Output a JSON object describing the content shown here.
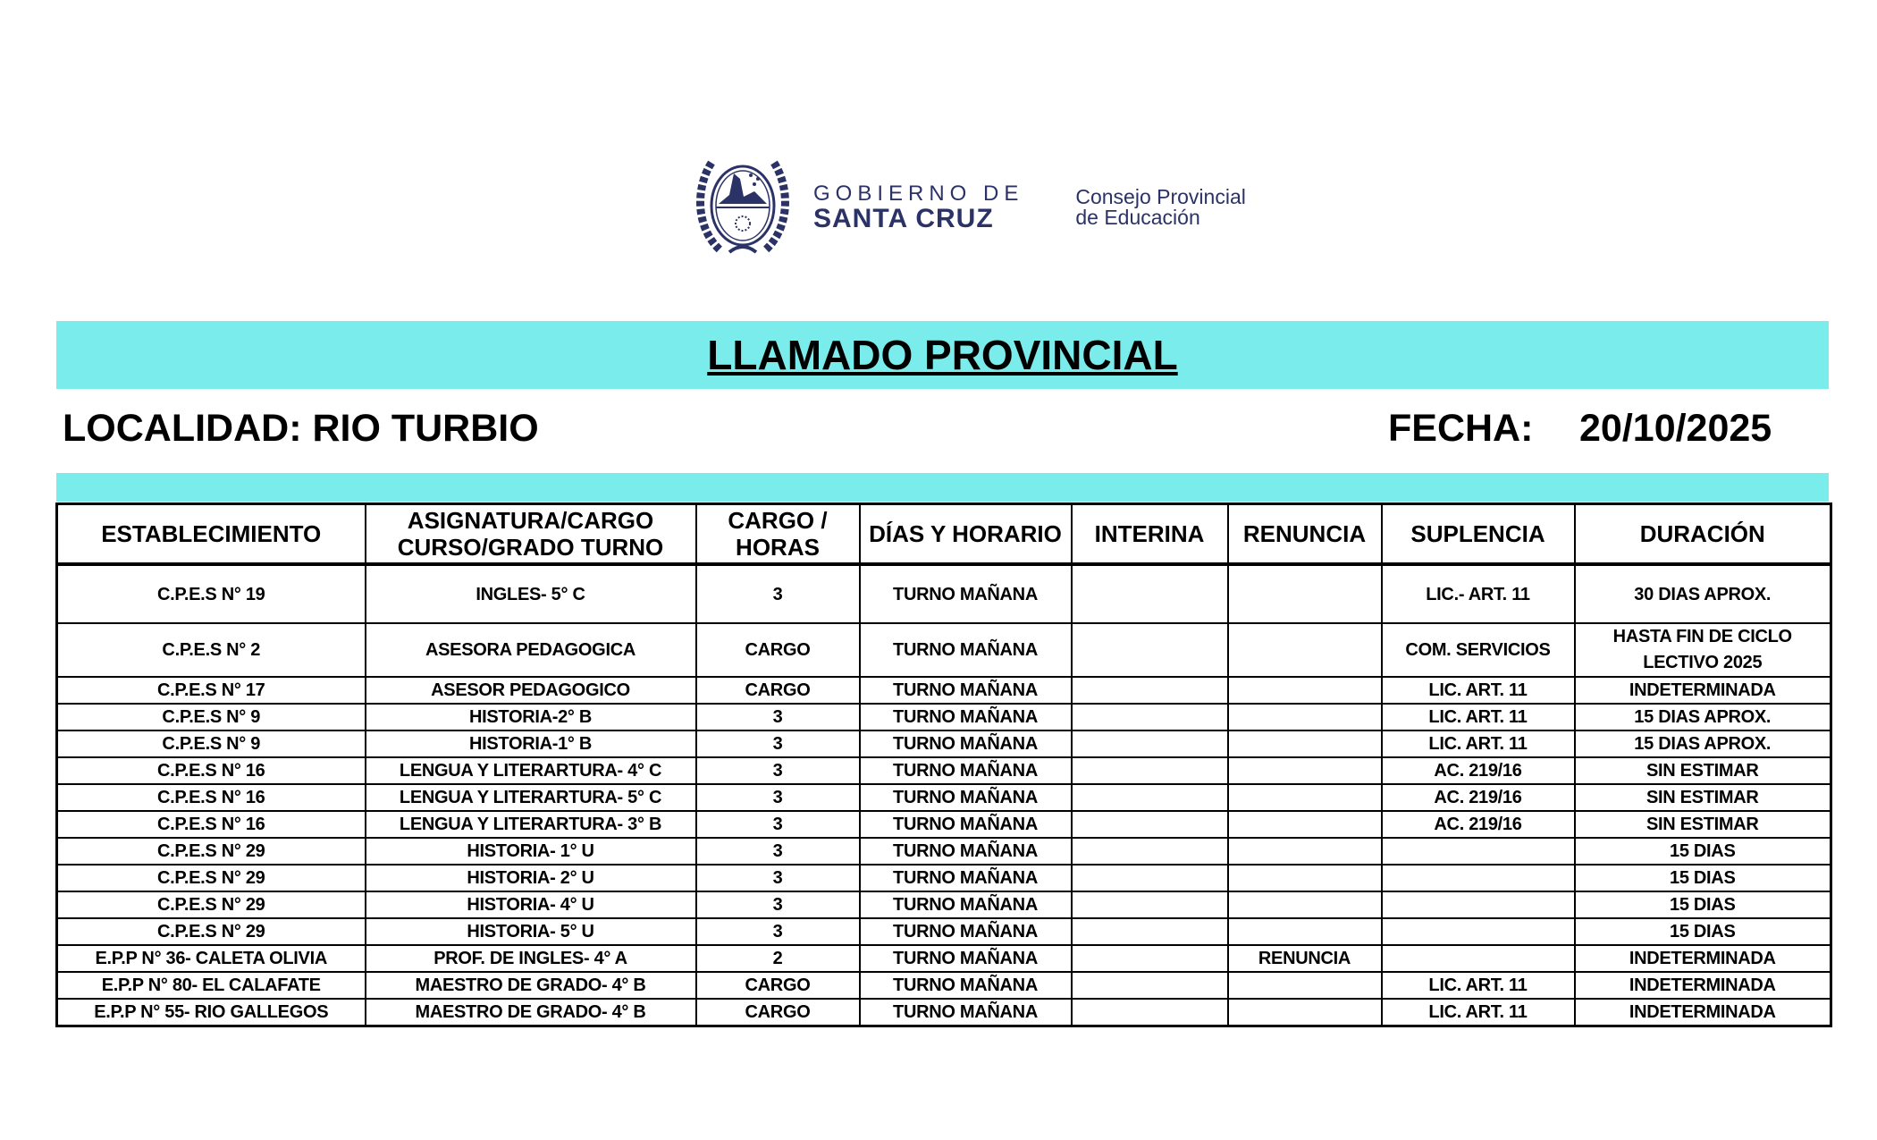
{
  "logo": {
    "line1": "GOBIERNO DE",
    "line2": "SANTA CRUZ",
    "council_line1": "Consejo Provincial",
    "council_line2": "de Educación",
    "brand_color": "#2b3266"
  },
  "title": "LLAMADO PROVINCIAL",
  "localidad": "LOCALIDAD: RIO TURBIO",
  "fecha_label": "FECHA:",
  "fecha_value": "20/10/2025",
  "accent_color": "#7aecec",
  "table": {
    "headers": [
      "ESTABLECIMIENTO",
      "ASIGNATURA/CARGO CURSO/GRADO  TURNO",
      "CARGO / HORAS",
      "DÍAS Y HORARIO",
      "INTERINA",
      "RENUNCIA",
      "SUPLENCIA",
      "DURACIÓN"
    ],
    "rows": [
      [
        "C.P.E.S N° 19",
        "INGLES- 5° C",
        "3",
        "TURNO MAÑANA",
        "",
        "",
        "LIC.- ART. 11",
        "30 DIAS APROX."
      ],
      [
        "C.P.E.S N° 2",
        "ASESORA PEDAGOGICA",
        "CARGO",
        "TURNO MAÑANA",
        "",
        "",
        "COM. SERVICIOS",
        "HASTA FIN DE CICLO LECTIVO 2025"
      ],
      [
        "C.P.E.S N° 17",
        "ASESOR PEDAGOGICO",
        "CARGO",
        "TURNO MAÑANA",
        "",
        "",
        "LIC. ART. 11",
        "INDETERMINADA"
      ],
      [
        "C.P.E.S N° 9",
        "HISTORIA-2° B",
        "3",
        "TURNO MAÑANA",
        "",
        "",
        "LIC. ART. 11",
        "15 DIAS APROX."
      ],
      [
        "C.P.E.S N° 9",
        "HISTORIA-1° B",
        "3",
        "TURNO MAÑANA",
        "",
        "",
        "LIC. ART. 11",
        "15 DIAS APROX."
      ],
      [
        "C.P.E.S N° 16",
        "LENGUA Y LITERARTURA- 4° C",
        "3",
        "TURNO MAÑANA",
        "",
        "",
        "AC. 219/16",
        "SIN ESTIMAR"
      ],
      [
        "C.P.E.S N° 16",
        "LENGUA Y LITERARTURA- 5° C",
        "3",
        "TURNO MAÑANA",
        "",
        "",
        "AC. 219/16",
        "SIN ESTIMAR"
      ],
      [
        "C.P.E.S N° 16",
        "LENGUA Y LITERARTURA- 3° B",
        "3",
        "TURNO MAÑANA",
        "",
        "",
        "AC. 219/16",
        "SIN ESTIMAR"
      ],
      [
        "C.P.E.S N° 29",
        "HISTORIA- 1° U",
        "3",
        "TURNO MAÑANA",
        "",
        "",
        "",
        "15 DIAS"
      ],
      [
        "C.P.E.S N° 29",
        "HISTORIA- 2° U",
        "3",
        "TURNO MAÑANA",
        "",
        "",
        "",
        "15 DIAS"
      ],
      [
        "C.P.E.S N° 29",
        "HISTORIA- 4° U",
        "3",
        "TURNO MAÑANA",
        "",
        "",
        "",
        "15 DIAS"
      ],
      [
        "C.P.E.S N° 29",
        "HISTORIA- 5° U",
        "3",
        "TURNO MAÑANA",
        "",
        "",
        "",
        "15 DIAS"
      ],
      [
        "E.P.P N° 36- CALETA OLIVIA",
        "PROF. DE INGLES- 4° A",
        "2",
        "TURNO MAÑANA",
        "",
        "RENUNCIA",
        "",
        "INDETERMINADA"
      ],
      [
        "E.P.P N° 80- EL CALAFATE",
        "MAESTRO DE GRADO- 4° B",
        "CARGO",
        "TURNO MAÑANA",
        "",
        "",
        "LIC. ART. 11",
        "INDETERMINADA"
      ],
      [
        "E.P.P N° 55- RIO GALLEGOS",
        "MAESTRO DE GRADO- 4° B",
        "CARGO",
        "TURNO MAÑANA",
        "",
        "",
        "LIC. ART. 11",
        "INDETERMINADA"
      ]
    ]
  }
}
